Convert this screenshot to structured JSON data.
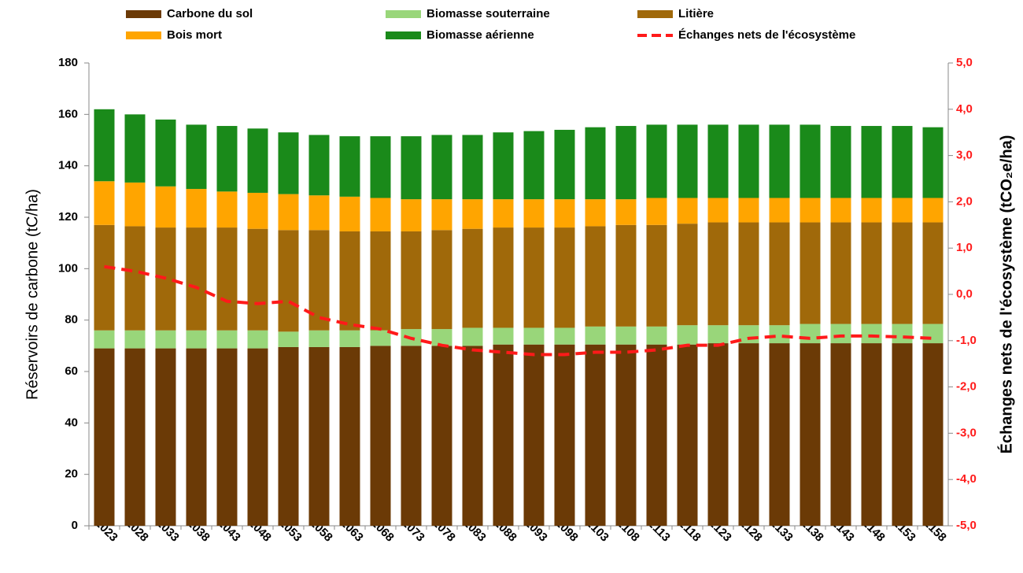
{
  "chart_data": {
    "type": "stacked_bar_line",
    "y_label": "Réservoirs de carbone (tC/ha)",
    "y2_label": "Échanges nets de l'écosystème (tCO₂e/ha)",
    "categories": [
      "2023",
      "2028",
      "2033",
      "2038",
      "2043",
      "2048",
      "2053",
      "2058",
      "2063",
      "2068",
      "2073",
      "2078",
      "2083",
      "2088",
      "2093",
      "2098",
      "2103",
      "2108",
      "2113",
      "2118",
      "2123",
      "2128",
      "2133",
      "2138",
      "2143",
      "2148",
      "2153",
      "2158"
    ],
    "series": [
      {
        "name": "Carbone du sol",
        "color": "#6b3a06",
        "values": [
          69,
          69,
          69,
          69,
          69,
          69,
          69.5,
          69.5,
          69.5,
          70,
          70,
          70,
          70,
          70.5,
          70.5,
          70.5,
          70.5,
          70.5,
          70.5,
          70.5,
          71,
          71,
          71,
          71,
          71,
          71,
          71,
          71
        ]
      },
      {
        "name": "Biomasse souterraine",
        "color": "#99d67a",
        "values": [
          7,
          7,
          7,
          7,
          7,
          7,
          6,
          6.5,
          6.5,
          6,
          6.5,
          6.5,
          7,
          6.5,
          6.5,
          6.5,
          7,
          7,
          7,
          7.5,
          7,
          7,
          7,
          7.5,
          7.5,
          7.5,
          7.5,
          7.5
        ]
      },
      {
        "name": "Litière",
        "color": "#a0690a",
        "values": [
          41,
          40.5,
          40,
          40,
          40,
          39.5,
          39.5,
          39,
          38.5,
          38.5,
          38,
          38.5,
          38.5,
          39,
          39,
          39,
          39,
          39.5,
          39.5,
          39.5,
          40,
          40,
          40,
          39.5,
          39.5,
          39.5,
          39.5,
          39.5
        ]
      },
      {
        "name": "Bois mort",
        "color": "#ffa500",
        "values": [
          17,
          17,
          16,
          15,
          14,
          14,
          14,
          13.5,
          13.5,
          13,
          12.5,
          12,
          11.5,
          11,
          11,
          11,
          10.5,
          10,
          10.5,
          10,
          9.5,
          9.5,
          9.5,
          9.5,
          9.5,
          9.5,
          9.5,
          9.5
        ]
      },
      {
        "name": "Biomasse aérienne",
        "color": "#1a8a1a",
        "values": [
          28,
          26.5,
          26,
          25,
          25.5,
          25,
          24,
          23.5,
          23.5,
          24,
          24.5,
          25,
          25,
          26,
          26.5,
          27,
          28,
          28.5,
          28.5,
          28.5,
          28.5,
          28.5,
          28.5,
          28.5,
          28,
          28,
          28,
          27.5
        ]
      },
      {
        "name": "Échanges nets de l'écosystème",
        "color": "#ff1a1a",
        "axis": "y2",
        "values": [
          0.6,
          0.5,
          0.35,
          0.15,
          -0.15,
          -0.2,
          -0.15,
          -0.5,
          -0.65,
          -0.75,
          -0.95,
          -1.1,
          -1.2,
          -1.25,
          -1.3,
          -1.3,
          -1.25,
          -1.25,
          -1.2,
          -1.1,
          -1.1,
          -0.95,
          -0.9,
          -0.95,
          -0.9,
          -0.9,
          -0.92,
          -0.95
        ]
      }
    ],
    "ylim": [
      0,
      180
    ],
    "yticks": [
      0,
      20,
      40,
      60,
      80,
      100,
      120,
      140,
      160,
      180
    ],
    "y2lim": [
      -5,
      5
    ],
    "y2ticks": [
      {
        "value": -5,
        "label": "-5,0"
      },
      {
        "value": -4,
        "label": "-4,0"
      },
      {
        "value": -3,
        "label": "-3,0"
      },
      {
        "value": -2,
        "label": "-2,0"
      },
      {
        "value": -1,
        "label": "-1,0"
      },
      {
        "value": 0,
        "label": "0,0"
      },
      {
        "value": 1,
        "label": "1,0"
      },
      {
        "value": 2,
        "label": "2,0"
      },
      {
        "value": 3,
        "label": "3,0"
      },
      {
        "value": 4,
        "label": "4,0"
      },
      {
        "value": 5,
        "label": "5,0"
      }
    ],
    "grid": false
  }
}
